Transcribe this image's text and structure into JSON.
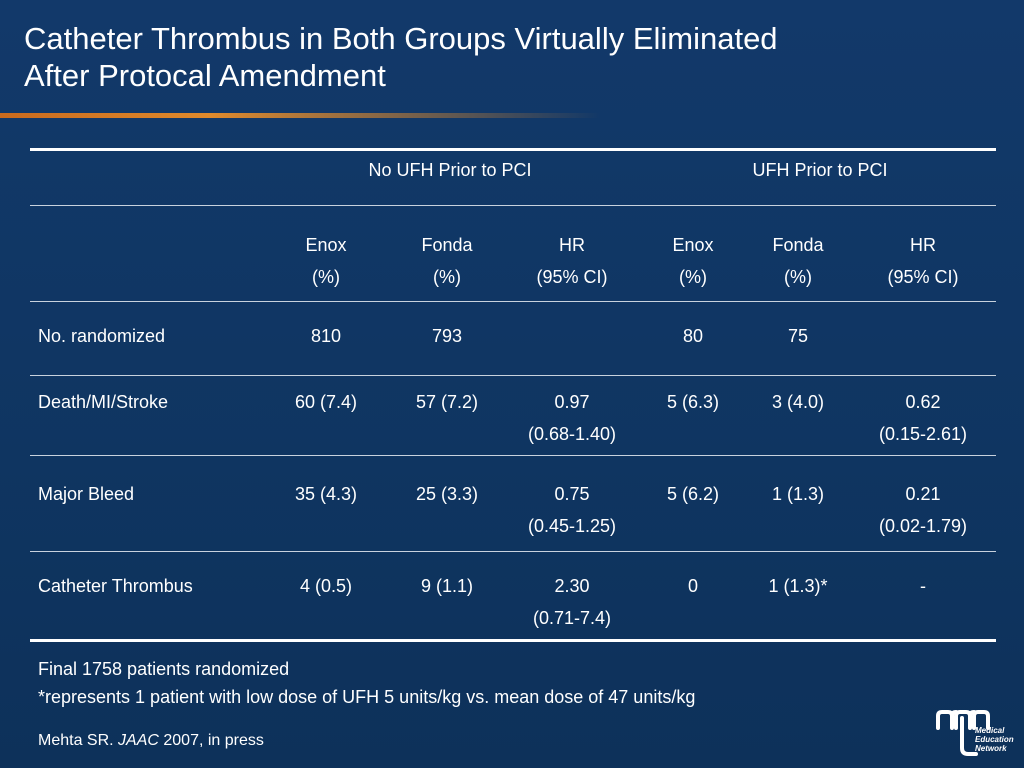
{
  "slide": {
    "title_line1": "Catheter Thrombus in Both Groups Virtually Eliminated",
    "title_line2": "After Protocal Amendment"
  },
  "table": {
    "group_headers": [
      "No UFH Prior to PCI",
      "UFH Prior to PCI"
    ],
    "columns": [
      {
        "l1": "Enox",
        "l2": "(%)"
      },
      {
        "l1": "Fonda",
        "l2": "(%)"
      },
      {
        "l1": "HR",
        "l2": "(95% CI)"
      },
      {
        "l1": "Enox",
        "l2": "(%)"
      },
      {
        "l1": "Fonda",
        "l2": "(%)"
      },
      {
        "l1": "HR",
        "l2": "(95% CI)"
      }
    ],
    "rows": [
      {
        "label": "No. randomized",
        "cells": [
          [
            "810"
          ],
          [
            "793"
          ],
          [
            ""
          ],
          [
            "80"
          ],
          [
            "75"
          ],
          [
            ""
          ]
        ]
      },
      {
        "label": "Death/MI/Stroke",
        "cells": [
          [
            "60 (7.4)"
          ],
          [
            "57 (7.2)"
          ],
          [
            "0.97",
            "(0.68-1.40)"
          ],
          [
            "5 (6.3)"
          ],
          [
            "3 (4.0)"
          ],
          [
            "0.62",
            "(0.15-2.61)"
          ]
        ]
      },
      {
        "label": "Major Bleed",
        "cells": [
          [
            "35 (4.3)"
          ],
          [
            "25 (3.3)"
          ],
          [
            "0.75",
            "(0.45-1.25)"
          ],
          [
            "5 (6.2)"
          ],
          [
            "1 (1.3)"
          ],
          [
            "0.21",
            "(0.02-1.79)"
          ]
        ]
      },
      {
        "label": "Catheter Thrombus",
        "cells": [
          [
            "4 (0.5)"
          ],
          [
            "9 (1.1)"
          ],
          [
            "2.30",
            "(0.71-7.4)"
          ],
          [
            "0"
          ],
          [
            "1 (1.3)*"
          ],
          [
            "-"
          ]
        ]
      }
    ]
  },
  "footnotes": {
    "line1": "Final 1758 patients randomized",
    "line2": "*represents 1 patient with low dose of UFH 5 units/kg vs. mean dose of 47 units/kg"
  },
  "citation": {
    "author": "Mehta SR. ",
    "journal": "JAAC",
    "rest": " 2007, in press"
  },
  "logo": {
    "line1": "Medical",
    "line2": "Education",
    "line3": "Network"
  }
}
